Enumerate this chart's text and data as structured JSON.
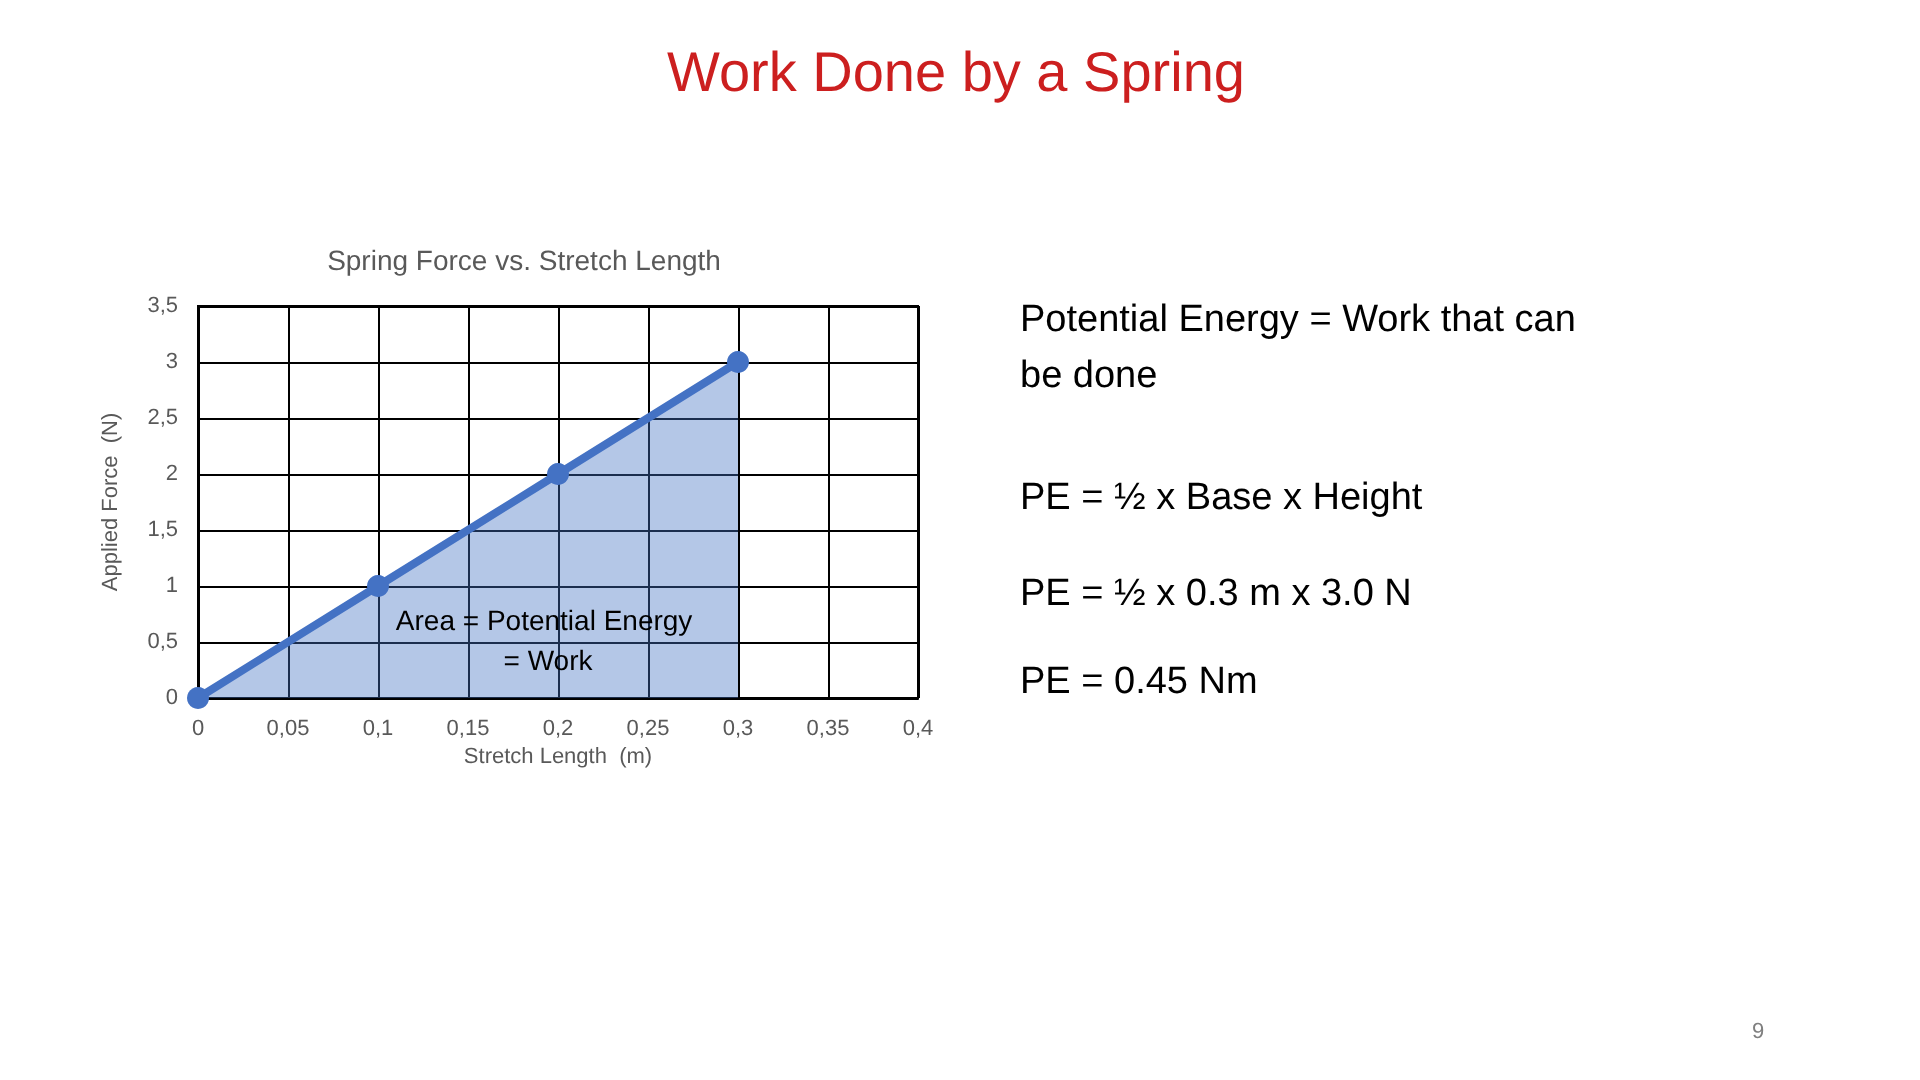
{
  "chart_data": {
    "type": "area",
    "title": "Work Done by a Spring",
    "subtitle": "Spring Force vs. Stretch Length",
    "xlabel": "Stretch Length  (m)",
    "ylabel": "Applied Force  (N)",
    "x": [
      0,
      0.1,
      0.2,
      0.3
    ],
    "series": [
      {
        "color": "#4472c4",
        "values": [
          0,
          1,
          2,
          3
        ]
      }
    ],
    "xlim": [
      0,
      0.4
    ],
    "xticks": [
      0,
      {
        "value": 0.05,
        "label": "0,05"
      },
      {
        "value": 0.1,
        "label": "0,1"
      },
      {
        "value": 0.15,
        "label": "0,15"
      },
      {
        "value": 0.2,
        "label": "0,2"
      },
      {
        "value": 0.25,
        "label": "0,25"
      },
      {
        "value": 0.3,
        "label": "0,3"
      },
      {
        "value": 0.35,
        "label": "0,35"
      },
      {
        "value": 0.4,
        "label": "0,4"
      }
    ],
    "ylim": [
      0,
      3.5
    ],
    "yticks": [
      0,
      {
        "value": 0.5,
        "label": "0,5"
      },
      1,
      {
        "value": 1.5,
        "label": "1,5"
      },
      2,
      {
        "value": 2.5,
        "label": "2,5"
      },
      3,
      {
        "value": 3.5,
        "label": "3,5"
      }
    ],
    "grid": true,
    "marker": "circle",
    "line_style": "solid",
    "annotations": [
      "Area = Potential Energy = Work",
      "Potential Energy = Work that can be done",
      "PE = ½ x Base x Height",
      "PE = ½ x 0.3 m x 3.0 N",
      "PE = 0.45 Nm",
      "9"
    ]
  }
}
